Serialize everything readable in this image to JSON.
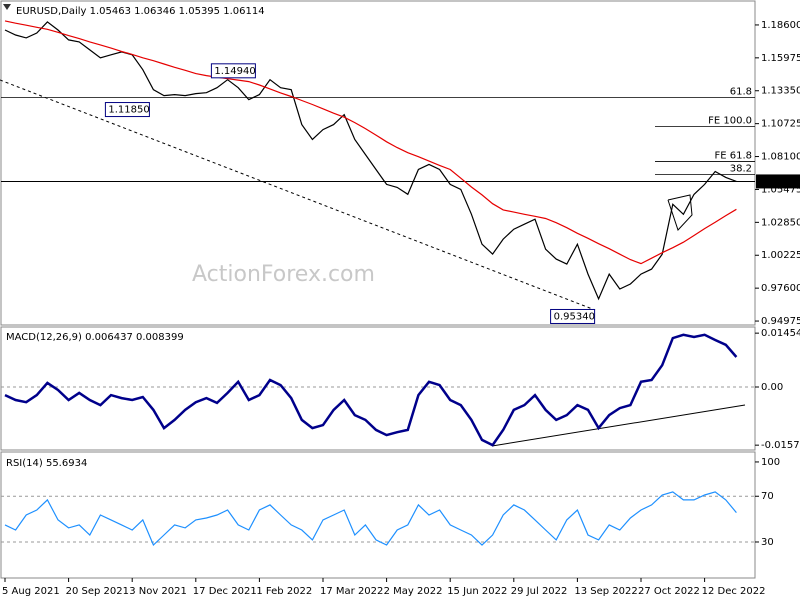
{
  "chart_data": [
    {
      "type": "line",
      "title": "EURUSD,Daily  1.05463 1.06346 1.05395 1.06114",
      "watermark": "ActionForex.com",
      "categories": [
        "5 Aug 2021",
        null,
        null,
        null,
        null,
        null,
        "20 Sep 2021",
        null,
        null,
        null,
        null,
        null,
        "3 Nov 2021",
        null,
        null,
        null,
        null,
        null,
        "17 Dec 2021",
        null,
        null,
        null,
        null,
        null,
        "1 Feb 2022",
        null,
        null,
        null,
        null,
        null,
        "17 Mar 2022",
        null,
        null,
        null,
        null,
        null,
        "2 May 2022",
        null,
        null,
        null,
        null,
        null,
        "15 Jun 2022",
        null,
        null,
        null,
        null,
        null,
        "29 Jul 2022",
        null,
        null,
        null,
        null,
        null,
        "13 Sep 2022",
        null,
        null,
        null,
        null,
        null,
        "27 Oct 2022",
        null,
        null,
        null,
        null,
        null,
        "12 Dec 2022",
        null,
        null,
        null
      ],
      "series": [
        {
          "color": "#000000",
          "values": [
            1.182,
            1.178,
            1.1757,
            1.1796,
            1.1884,
            1.182,
            1.1741,
            1.1725,
            1.1661,
            1.1598,
            1.1622,
            1.1645,
            1.1622,
            1.1503,
            1.1343,
            1.1296,
            1.1304,
            1.1296,
            1.1312,
            1.1319,
            1.1359,
            1.1423,
            1.1359,
            1.1264,
            1.1304,
            1.1423,
            1.1359,
            1.1343,
            1.1065,
            1.0946,
            1.1025,
            1.1065,
            1.1145,
            1.0946,
            1.0826,
            1.0707,
            1.0588,
            1.0564,
            1.0509,
            1.0707,
            1.0747,
            1.0707,
            1.0588,
            1.0548,
            1.035,
            1.0111,
            1.0032,
            1.0151,
            1.023,
            1.027,
            1.031,
            1.0071,
            0.9992,
            0.9952,
            1.0111,
            0.9872,
            0.9674,
            0.9872,
            0.9753,
            0.9793,
            0.9872,
            0.9912,
            1.0031,
            1.0429,
            1.0349,
            1.0508,
            1.0588,
            1.0691,
            1.0644,
            1.06114
          ]
        },
        {
          "color": "#e60000",
          "values": [
            1.1892,
            1.1874,
            1.1858,
            1.1841,
            1.1825,
            1.1801,
            1.1775,
            1.1751,
            1.1725,
            1.1701,
            1.1675,
            1.1649,
            1.1625,
            1.1598,
            1.1575,
            1.1548,
            1.1522,
            1.1498,
            1.1472,
            1.1456,
            1.1443,
            1.1431,
            1.142,
            1.1408,
            1.1381,
            1.135,
            1.1318,
            1.1289,
            1.1257,
            1.1225,
            1.1191,
            1.1156,
            1.1124,
            1.1081,
            1.1033,
            1.0981,
            1.0928,
            1.0881,
            1.0841,
            1.0809,
            1.0774,
            1.0739,
            1.0707,
            1.0637,
            1.0567,
            1.0504,
            1.0434,
            1.0384,
            1.0367,
            1.0349,
            1.0333,
            1.0316,
            1.0282,
            1.0242,
            1.0198,
            1.0158,
            1.0115,
            1.0075,
            1.0031,
            0.9988,
            0.9956,
            0.9999,
            1.0043,
            1.0083,
            1.0127,
            1.018,
            1.0235,
            1.0285,
            1.0339,
            1.0389
          ]
        }
      ],
      "ylim": [
        0.9466,
        1.2059
      ],
      "yticks": [
        {
          "value": 1.186,
          "label": "1.18600"
        },
        1.15975,
        {
          "value": 1.1335,
          "label": "1.13350"
        },
        1.10725,
        {
          "value": 1.081,
          "label": "1.08100"
        },
        1.05475,
        {
          "value": 1.0285,
          "label": "1.02850"
        },
        1.00225,
        {
          "value": 0.976,
          "label": "0.97600"
        },
        0.94975
      ],
      "grid": false,
      "levels": [
        {
          "value": 1.128,
          "label": "61.8"
        },
        {
          "value": 1.1049,
          "label": "FE 100.0"
        },
        {
          "value": 1.0771,
          "label": "FE 61.8"
        },
        {
          "value": 1.0667,
          "label": "38.2"
        }
      ],
      "annotations": [
        {
          "index": 14,
          "value": 1.1185,
          "label": "1.11850"
        },
        {
          "index": 24,
          "value": 1.1494,
          "label": "1.14940"
        },
        {
          "index": 56,
          "value": 0.9534,
          "label": "0.95340"
        }
      ],
      "last": {
        "value": 1.06114,
        "label": "1.06114"
      }
    },
    {
      "type": "line",
      "title": "MACD(12,26,9) 0.006437 0.008399",
      "series": [
        {
          "color": "#00008b",
          "values": [
            -0.0022,
            -0.0035,
            -0.0041,
            -0.0022,
            0.0011,
            -0.0008,
            -0.0035,
            -0.0016,
            -0.0035,
            -0.0049,
            -0.0022,
            -0.003,
            -0.0035,
            -0.0027,
            -0.0062,
            -0.0111,
            -0.0089,
            -0.0062,
            -0.0041,
            -0.003,
            -0.0043,
            -0.0016,
            0.0014,
            -0.0035,
            -0.0022,
            0.0019,
            0.0005,
            -0.003,
            -0.0089,
            -0.0111,
            -0.0103,
            -0.0062,
            -0.0035,
            -0.0076,
            -0.0089,
            -0.0116,
            -0.013,
            -0.0122,
            -0.0116,
            -0.0022,
            0.0014,
            0.0005,
            -0.0035,
            -0.0049,
            -0.0089,
            -0.0143,
            -0.0157,
            -0.0116,
            -0.0062,
            -0.0049,
            -0.0022,
            -0.0062,
            -0.0089,
            -0.0076,
            -0.0049,
            -0.0062,
            -0.0111,
            -0.0076,
            -0.0057,
            -0.0049,
            0.0014,
            0.0019,
            0.0059,
            0.0132,
            0.0141,
            0.0135,
            0.0141,
            0.0127,
            0.0114,
            0.0081
          ]
        }
      ],
      "ylim": [
        -0.01702,
        0.01648
      ],
      "yticks": [
        0.014549,
        {
          "value": 0,
          "label": "0.00"
        },
        -0.015712
      ],
      "grid": true
    },
    {
      "type": "line",
      "title": "RSI(14) 55.6934",
      "series": [
        {
          "color": "#1e90ff",
          "values": [
            44.9,
            40.5,
            53.6,
            58.0,
            66.8,
            49.3,
            42.3,
            44.9,
            36.1,
            53.6,
            49.3,
            44.9,
            40.5,
            49.3,
            27.4,
            36.1,
            44.9,
            42.3,
            49.3,
            51.0,
            53.6,
            58.0,
            44.9,
            40.5,
            58.0,
            62.4,
            53.6,
            44.9,
            40.5,
            31.8,
            49.3,
            53.6,
            58.0,
            36.1,
            44.9,
            31.8,
            27.4,
            40.5,
            44.9,
            62.4,
            53.6,
            58.0,
            44.9,
            40.5,
            36.1,
            27.4,
            36.1,
            53.6,
            62.4,
            58.0,
            49.3,
            40.5,
            31.8,
            49.3,
            58.0,
            36.1,
            31.8,
            44.9,
            40.5,
            51.0,
            58.0,
            62.4,
            71.1,
            73.8,
            66.8,
            66.8,
            71.1,
            73.8,
            66.8,
            55.6934
          ]
        }
      ],
      "ylim": [
        -1.5,
        108.7
      ],
      "yticks": [
        100,
        70,
        30
      ],
      "grid": true
    }
  ]
}
